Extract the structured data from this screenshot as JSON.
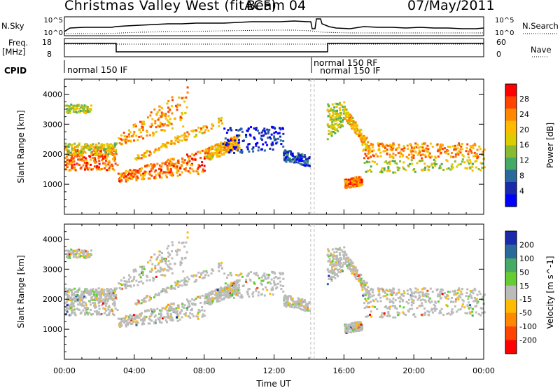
{
  "header": {
    "station": "Christmas Valley West (fitACF)",
    "beam": "Beam 04",
    "date": "07/May/2011"
  },
  "noise_panel": {
    "left_label": "N.Sky",
    "right_label": "N.Search",
    "left_ticks": [
      "10^5",
      "10^0"
    ],
    "right_ticks": [
      "10^5",
      "10^0"
    ]
  },
  "freq_panel": {
    "left_label": [
      "Freq.",
      "[MHz]"
    ],
    "right_label": "Nave",
    "left_ticks": [
      "18",
      "8"
    ],
    "right_ticks": [
      "60",
      "0"
    ]
  },
  "cpid_panel": {
    "label": "CPID",
    "entries": [
      "normal 150 IF",
      "normal 150 RF",
      "normal 150 IF"
    ]
  },
  "chart_data": [
    {
      "type": "heatmap",
      "name": "power",
      "xlabel": "",
      "ylabel": "Slant Range [km]",
      "xlim": [
        0,
        24
      ],
      "ylim": [
        0,
        4500
      ],
      "y_ticks": [
        "1000",
        "2000",
        "3000",
        "4000"
      ],
      "colorbar": {
        "label": "Power [dB]",
        "ticks": [
          "28",
          "24",
          "20",
          "16",
          "12",
          "8",
          "4"
        ],
        "colors": [
          "#ff0000",
          "#ff4400",
          "#ff8800",
          "#ffbb00",
          "#ddcc00",
          "#88bb33",
          "#44aa66",
          "#2a6a9a",
          "#1a2aaa",
          "#0000ff"
        ]
      }
    },
    {
      "type": "heatmap",
      "name": "velocity",
      "xlabel": "Time UT",
      "ylabel": "Slant Range [km]",
      "xlim": [
        0,
        24
      ],
      "ylim": [
        0,
        4500
      ],
      "x_ticks": [
        "00:00",
        "04:00",
        "08:00",
        "12:00",
        "16:00",
        "20:00",
        "00:00"
      ],
      "y_ticks": [
        "1000",
        "2000",
        "3000",
        "4000"
      ],
      "colorbar": {
        "label": "Velocity [m s^-1]",
        "ticks": [
          "200",
          "100",
          "50",
          "15",
          "-15",
          "-50",
          "-100",
          "-200"
        ],
        "colors": [
          "#1a2aaa",
          "#2a6a9a",
          "#44aa66",
          "#66cc33",
          "#bbbbbb",
          "#ffbb00",
          "#ff8800",
          "#ff4400",
          "#ff0000"
        ]
      }
    }
  ]
}
